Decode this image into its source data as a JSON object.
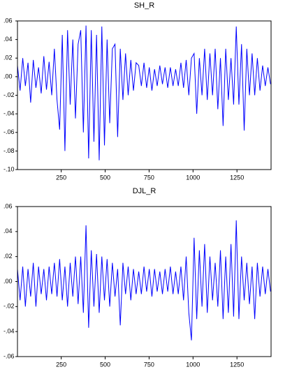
{
  "chart_data": [
    {
      "type": "line",
      "title": "SH_R",
      "color": "#0000ff",
      "x": [
        1,
        16,
        31,
        46,
        61,
        76,
        91,
        106,
        121,
        136,
        151,
        166,
        181,
        196,
        211,
        226,
        241,
        256,
        271,
        286,
        301,
        316,
        331,
        346,
        361,
        376,
        391,
        406,
        421,
        436,
        451,
        466,
        481,
        496,
        511,
        526,
        541,
        556,
        571,
        586,
        601,
        616,
        631,
        646,
        661,
        676,
        691,
        706,
        721,
        736,
        751,
        766,
        781,
        796,
        811,
        826,
        841,
        856,
        871,
        886,
        901,
        916,
        931,
        946,
        961,
        976,
        991,
        1006,
        1021,
        1036,
        1051,
        1066,
        1081,
        1096,
        1111,
        1126,
        1141,
        1156,
        1171,
        1186,
        1201,
        1216,
        1231,
        1246,
        1261,
        1276,
        1291,
        1306,
        1321,
        1336,
        1351,
        1366,
        1381,
        1396,
        1411,
        1426,
        1441
      ],
      "series": [
        {
          "name": "SH_R",
          "color": "#0000ff",
          "values": [
            0.012,
            -0.015,
            0.02,
            -0.01,
            0.015,
            -0.028,
            0.018,
            -0.012,
            0.01,
            -0.018,
            0.022,
            -0.014,
            0.016,
            -0.02,
            0.03,
            -0.025,
            -0.057,
            0.045,
            -0.08,
            0.05,
            -0.03,
            0.04,
            -0.045,
            0.035,
            0.05,
            -0.06,
            0.055,
            -0.088,
            0.05,
            -0.07,
            0.045,
            -0.09,
            0.054,
            -0.074,
            0.04,
            -0.05,
            0.03,
            0.035,
            -0.065,
            0.03,
            -0.025,
            0.025,
            -0.02,
            0.018,
            -0.015,
            0.015,
            0.012,
            -0.01,
            0.015,
            -0.012,
            0.01,
            -0.015,
            0.008,
            -0.01,
            0.012,
            -0.008,
            0.01,
            -0.012,
            0.01,
            -0.01,
            0.008,
            -0.01,
            0.015,
            -0.012,
            0.018,
            -0.02,
            0.02,
            0.025,
            -0.04,
            0.02,
            -0.02,
            0.03,
            -0.025,
            0.025,
            -0.02,
            0.03,
            -0.035,
            0.02,
            -0.053,
            0.03,
            -0.025,
            0.02,
            -0.03,
            0.054,
            -0.03,
            0.035,
            -0.058,
            0.03,
            -0.02,
            0.025,
            -0.02,
            0.02,
            -0.015,
            0.012,
            -0.01,
            0.01,
            -0.008
          ]
        }
      ],
      "xlim": [
        1,
        1444
      ],
      "xticks": [
        250,
        500,
        750,
        1000,
        1250
      ],
      "ylim": [
        -0.1,
        0.06
      ],
      "yticks": [
        {
          "value": 0.06,
          "label": ".06"
        },
        {
          "value": 0.04,
          "label": ".04"
        },
        {
          "value": 0.02,
          "label": ".02"
        },
        {
          "value": 0,
          "label": ".00"
        },
        {
          "value": -0.02,
          "label": "-.02"
        },
        {
          "value": -0.04,
          "label": "-.04"
        },
        {
          "value": -0.06,
          "label": "-.06"
        },
        {
          "value": -0.08,
          "label": "-.08"
        },
        {
          "value": -0.1,
          "label": "-.10"
        }
      ]
    },
    {
      "type": "line",
      "title": "DJL_R",
      "color": "#0000ff",
      "x": [
        1,
        16,
        31,
        46,
        61,
        76,
        91,
        106,
        121,
        136,
        151,
        166,
        181,
        196,
        211,
        226,
        241,
        256,
        271,
        286,
        301,
        316,
        331,
        346,
        361,
        376,
        391,
        406,
        421,
        436,
        451,
        466,
        481,
        496,
        511,
        526,
        541,
        556,
        571,
        586,
        601,
        616,
        631,
        646,
        661,
        676,
        691,
        706,
        721,
        736,
        751,
        766,
        781,
        796,
        811,
        826,
        841,
        856,
        871,
        886,
        901,
        916,
        931,
        946,
        961,
        976,
        991,
        1006,
        1021,
        1036,
        1051,
        1066,
        1081,
        1096,
        1111,
        1126,
        1141,
        1156,
        1171,
        1186,
        1201,
        1216,
        1231,
        1246,
        1261,
        1276,
        1291,
        1306,
        1321,
        1336,
        1351,
        1366,
        1381,
        1396,
        1411,
        1426,
        1441
      ],
      "series": [
        {
          "name": "DJL_R",
          "color": "#0000ff",
          "values": [
            0.01,
            -0.015,
            0.012,
            -0.02,
            0.01,
            -0.012,
            0.015,
            -0.02,
            0.012,
            -0.01,
            0.01,
            -0.015,
            0.012,
            -0.01,
            0.015,
            -0.012,
            0.018,
            -0.015,
            0.012,
            -0.02,
            0.015,
            -0.012,
            0.02,
            -0.018,
            0.02,
            -0.025,
            0.045,
            -0.037,
            0.025,
            -0.02,
            0.022,
            -0.025,
            0.02,
            -0.015,
            0.018,
            -0.02,
            0.015,
            -0.012,
            0.01,
            -0.035,
            0.015,
            -0.01,
            0.012,
            -0.015,
            0.01,
            -0.01,
            0.008,
            -0.01,
            0.012,
            -0.008,
            0.01,
            -0.012,
            0.01,
            -0.008,
            0.008,
            -0.01,
            0.01,
            -0.008,
            0.012,
            -0.01,
            0.008,
            -0.01,
            0.012,
            -0.015,
            0.02,
            -0.025,
            -0.047,
            0.035,
            -0.03,
            0.025,
            -0.02,
            0.03,
            -0.025,
            0.02,
            -0.015,
            0.015,
            -0.02,
            0.025,
            -0.03,
            0.02,
            -0.025,
            0.03,
            -0.028,
            0.049,
            -0.03,
            0.02,
            -0.015,
            0.015,
            -0.018,
            0.012,
            -0.03,
            0.015,
            -0.012,
            0.012,
            -0.01,
            0.01,
            -0.008
          ]
        }
      ],
      "xlim": [
        1,
        1444
      ],
      "xticks": [
        250,
        500,
        750,
        1000,
        1250
      ],
      "ylim": [
        -0.06,
        0.06
      ],
      "yticks": [
        {
          "value": 0.06,
          "label": ".06"
        },
        {
          "value": 0.04,
          "label": ".04"
        },
        {
          "value": 0.02,
          "label": ".02"
        },
        {
          "value": 0,
          "label": ".00"
        },
        {
          "value": -0.02,
          "label": "-.02"
        },
        {
          "value": -0.04,
          "label": "-.04"
        },
        {
          "value": -0.06,
          "label": "-.06"
        }
      ]
    }
  ]
}
